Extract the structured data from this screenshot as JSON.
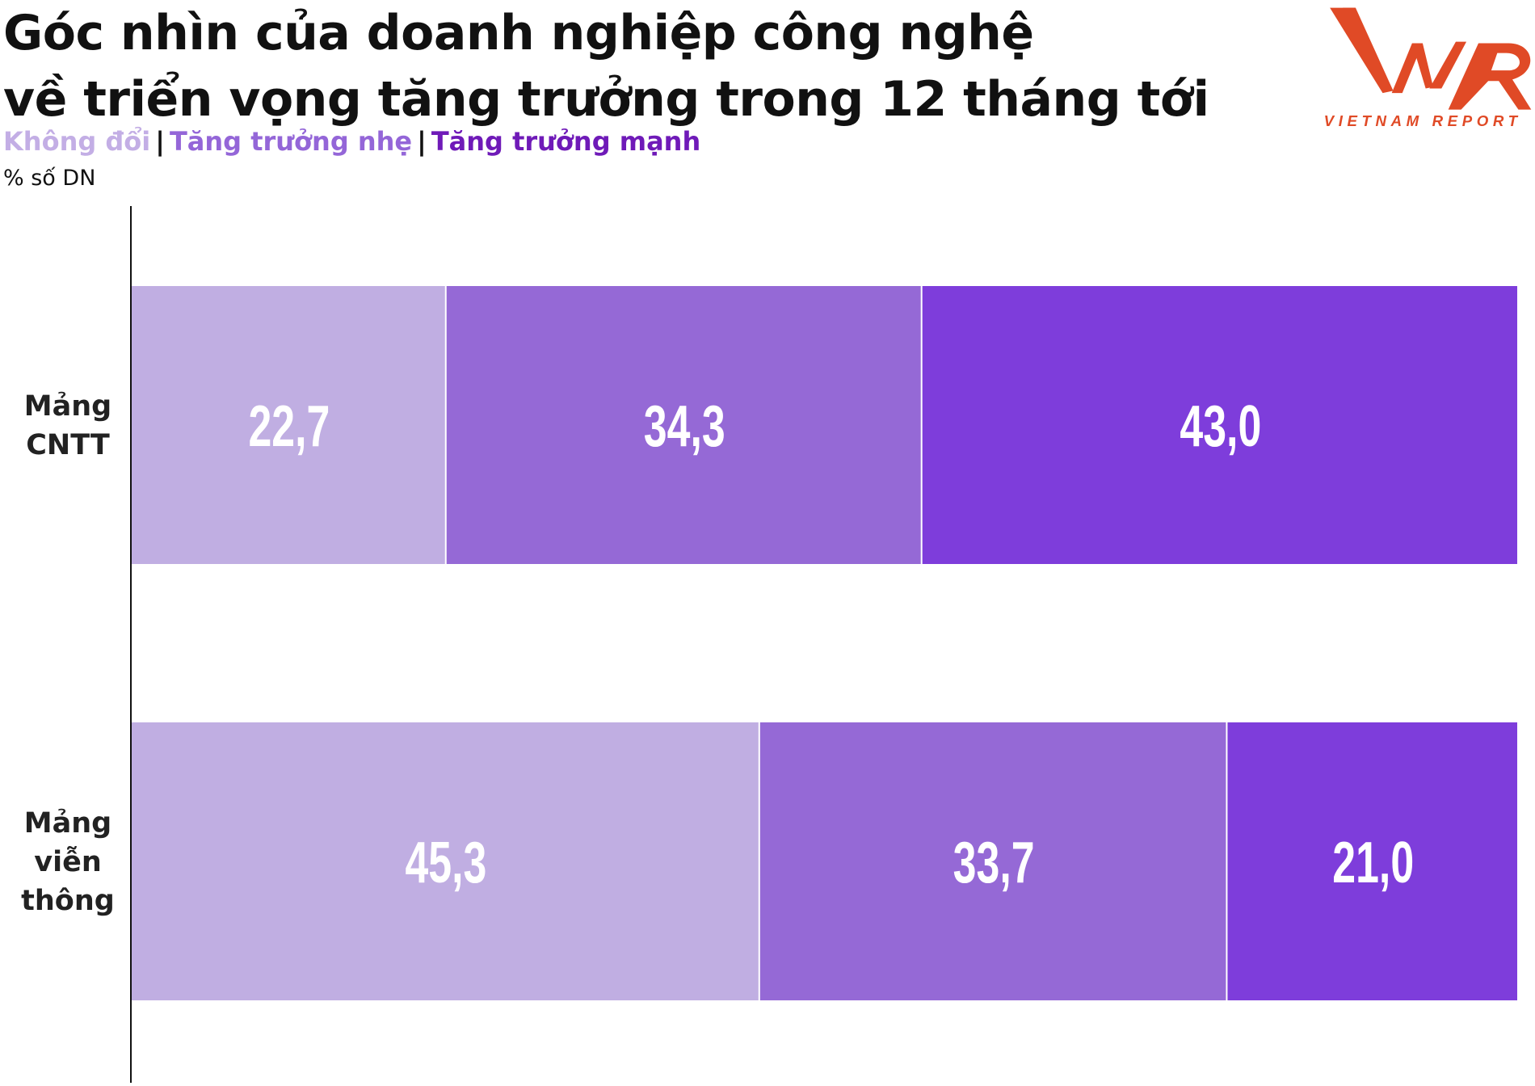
{
  "title_lines": [
    "Góc nhìn của doanh nghiệp công nghệ",
    "về triển vọng tăng trưởng trong 12 tháng tới"
  ],
  "logo": {
    "text": "VNR",
    "subtext": "VIETNAM REPORT",
    "color": "#e04a26"
  },
  "chart_data": {
    "type": "bar",
    "orientation": "horizontal",
    "stacked": true,
    "unit_label": "% số DN",
    "categories": [
      [
        "Mảng",
        "CNTT"
      ],
      [
        "Mảng",
        "viễn",
        "thông"
      ]
    ],
    "series": [
      {
        "name": "Không đổi",
        "color": "#c0aee2",
        "legend_color": "#c3aee5",
        "values": [
          22.7,
          45.3
        ],
        "labels": [
          "22,7",
          "45,3"
        ]
      },
      {
        "name": "Tăng trưởng nhẹ",
        "color": "#9569d6",
        "legend_color": "#9466d8",
        "values": [
          34.3,
          33.7
        ],
        "labels": [
          "34,3",
          "33,7"
        ]
      },
      {
        "name": "Tăng trưởng mạnh",
        "color": "#7e3ddb",
        "legend_color": "#6f1ab8",
        "values": [
          43.0,
          21.0
        ],
        "labels": [
          "43,0",
          "21,0"
        ]
      }
    ],
    "xlim": [
      0,
      100
    ],
    "legend_position": "top-left",
    "grid": false
  }
}
